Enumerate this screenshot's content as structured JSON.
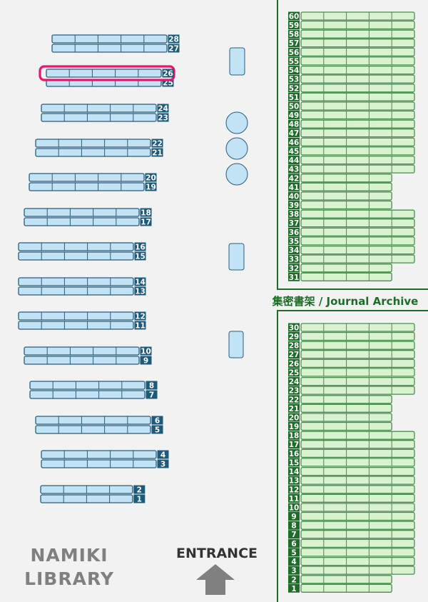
{
  "library": {
    "title_line1": "NAMIKI",
    "title_line2": "LIBRARY"
  },
  "entrance": {
    "label": "ENTRANCE",
    "icon": "arrow-up-icon"
  },
  "journal_area": {
    "label": "集密書架 / Journal Archive"
  },
  "highlighted_shelf": 26,
  "colors": {
    "general_fill": "#c2e3f5",
    "general_stroke": "#2a5c78",
    "general_label_bg": "#1d5a7a",
    "journal_fill": "#d9f2d0",
    "journal_stroke": "#4a8c50",
    "journal_label_bg": "#1e6b2a",
    "highlight": "#e8156e",
    "entrance_arrow": "#808080"
  },
  "general_shelves": [
    {
      "top": "28",
      "bottom": "27",
      "sections": 5
    },
    {
      "top": "26",
      "bottom": "25",
      "sections": 5
    },
    {
      "top": "24",
      "bottom": "23",
      "sections": 5
    },
    {
      "top": "22",
      "bottom": "21",
      "sections": 5
    },
    {
      "top": "20",
      "bottom": "19",
      "sections": 5
    },
    {
      "top": "18",
      "bottom": "17",
      "sections": 5
    },
    {
      "top": "16",
      "bottom": "15",
      "sections": 5
    },
    {
      "top": "14",
      "bottom": "13",
      "sections": 5
    },
    {
      "top": "12",
      "bottom": "11",
      "sections": 5
    },
    {
      "top": "10",
      "bottom": "9",
      "sections": 5
    },
    {
      "top": "8",
      "bottom": "7",
      "sections": 5
    },
    {
      "top": "6",
      "bottom": "5",
      "sections": 5
    },
    {
      "top": "4",
      "bottom": "3",
      "sections": 5
    },
    {
      "top": "2",
      "bottom": "1",
      "sections": 4
    }
  ],
  "journal_upper": [
    {
      "top": "60",
      "bottom": "59",
      "sections": 5
    },
    {
      "top": "58",
      "bottom": "57",
      "sections": 5
    },
    {
      "top": "56",
      "bottom": "55",
      "sections": 5
    },
    {
      "top": "54",
      "bottom": "53",
      "sections": 5
    },
    {
      "top": "52",
      "bottom": "51",
      "sections": 5
    },
    {
      "top": "50",
      "bottom": "49",
      "sections": 5
    },
    {
      "top": "48",
      "bottom": "47",
      "sections": 5
    },
    {
      "top": "46",
      "bottom": "45",
      "sections": 5
    },
    {
      "top": "44",
      "bottom": "43",
      "sections": 5
    },
    {
      "top": "42",
      "bottom": "41",
      "sections": 4
    },
    {
      "top": "40",
      "bottom": "39",
      "sections": 4
    },
    {
      "top": "38",
      "bottom": "37",
      "sections": 5
    },
    {
      "top": "36",
      "bottom": "35",
      "sections": 5
    },
    {
      "top": "34",
      "bottom": "33",
      "sections": 5
    },
    {
      "top": "32",
      "bottom": "31",
      "sections": 4
    }
  ],
  "journal_lower": [
    {
      "top": "30",
      "bottom": "29",
      "sections": 5
    },
    {
      "top": "28",
      "bottom": "27",
      "sections": 5
    },
    {
      "top": "26",
      "bottom": "25",
      "sections": 5
    },
    {
      "top": "24",
      "bottom": "23",
      "sections": 5
    },
    {
      "top": "22",
      "bottom": "21",
      "sections": 4
    },
    {
      "top": "20",
      "bottom": "19",
      "sections": 4
    },
    {
      "top": "18",
      "bottom": "17",
      "sections": 5
    },
    {
      "top": "16",
      "bottom": "15",
      "sections": 5
    },
    {
      "top": "14",
      "bottom": "13",
      "sections": 5
    },
    {
      "top": "12",
      "bottom": "11",
      "sections": 5
    },
    {
      "top": "10",
      "bottom": "9",
      "sections": 5
    },
    {
      "top": "8",
      "bottom": "7",
      "sections": 5
    },
    {
      "top": "6",
      "bottom": "5",
      "sections": 5
    },
    {
      "top": "4",
      "bottom": "3",
      "sections": 5
    },
    {
      "top": "2",
      "bottom": "1",
      "sections": 4
    }
  ]
}
